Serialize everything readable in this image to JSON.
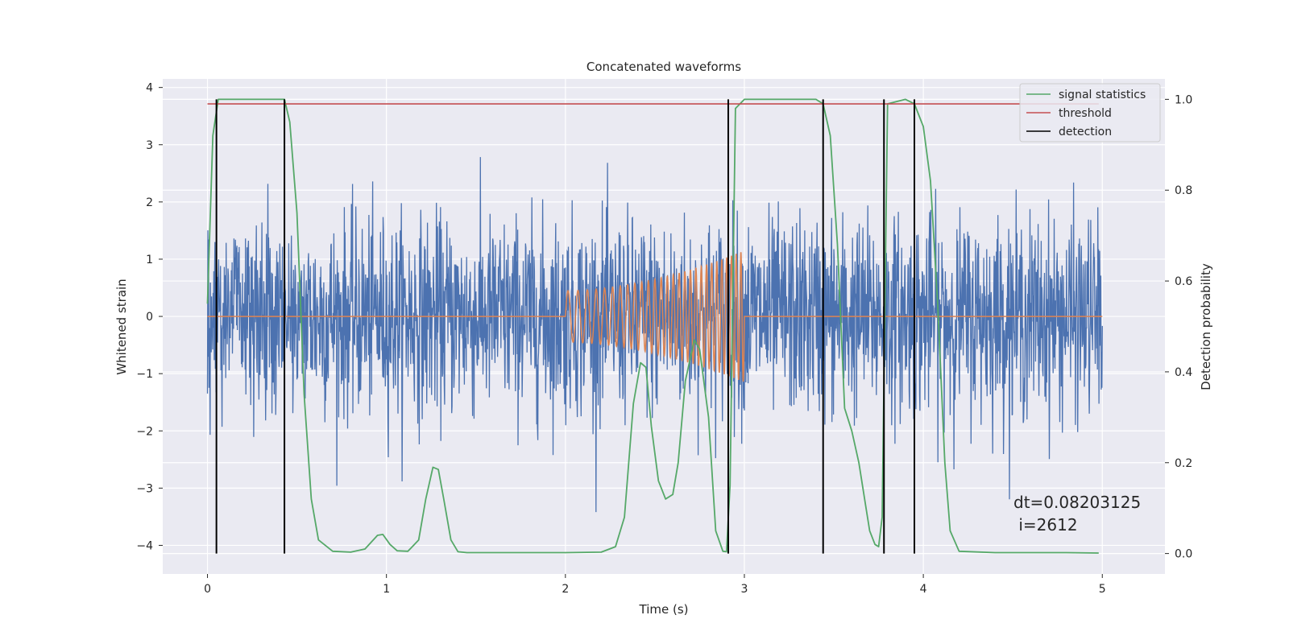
{
  "chart_data": {
    "type": "line",
    "title": "Concatenated waveforms",
    "xlabel": "Time (s)",
    "ylabel_left": "Whitened strain",
    "ylabel_right": "Detection probability",
    "xlim": [
      -0.25,
      5.35
    ],
    "ylim_left": [
      -4.5,
      4.15
    ],
    "ylim_right": [
      -0.045,
      1.045
    ],
    "x_ticks": [
      0,
      1,
      2,
      3,
      4,
      5
    ],
    "y_ticks_left": [
      -4,
      -3,
      -2,
      -1,
      0,
      1,
      2,
      3,
      4
    ],
    "y_ticks_right": [
      0.0,
      0.2,
      0.4,
      0.6,
      0.8,
      1.0
    ],
    "grid": true,
    "legend_position": "upper right",
    "background_color": "#eaeaf2",
    "series": [
      {
        "name": "signal statistics",
        "color": "#55a868",
        "x": [
          0.0,
          0.03,
          0.06,
          0.1,
          0.2,
          0.3,
          0.38,
          0.43,
          0.46,
          0.5,
          0.54,
          0.58,
          0.62,
          0.7,
          0.8,
          0.88,
          0.95,
          0.98,
          1.02,
          1.06,
          1.12,
          1.18,
          1.22,
          1.26,
          1.29,
          1.32,
          1.36,
          1.4,
          1.45,
          1.6,
          1.8,
          2.0,
          2.2,
          2.28,
          2.33,
          2.38,
          2.42,
          2.45,
          2.48,
          2.52,
          2.56,
          2.6,
          2.63,
          2.67,
          2.72,
          2.75,
          2.8,
          2.84,
          2.88,
          2.9,
          2.92,
          2.95,
          3.0,
          3.2,
          3.4,
          3.44,
          3.48,
          3.52,
          3.56,
          3.6,
          3.64,
          3.68,
          3.7,
          3.73,
          3.75,
          3.77,
          3.8,
          3.9,
          3.95,
          4.0,
          4.04,
          4.08,
          4.12,
          4.15,
          4.2,
          4.4,
          4.6,
          4.8,
          4.98
        ],
        "values": [
          0.55,
          0.92,
          1.0,
          1.0,
          1.0,
          1.0,
          1.0,
          1.0,
          0.95,
          0.75,
          0.35,
          0.12,
          0.03,
          0.005,
          0.003,
          0.01,
          0.04,
          0.042,
          0.02,
          0.006,
          0.005,
          0.03,
          0.12,
          0.19,
          0.185,
          0.12,
          0.03,
          0.004,
          0.002,
          0.002,
          0.002,
          0.002,
          0.003,
          0.015,
          0.08,
          0.33,
          0.42,
          0.41,
          0.28,
          0.16,
          0.12,
          0.13,
          0.2,
          0.38,
          0.47,
          0.45,
          0.3,
          0.05,
          0.005,
          0.004,
          0.15,
          0.98,
          1.0,
          1.0,
          1.0,
          0.99,
          0.92,
          0.68,
          0.32,
          0.27,
          0.2,
          0.1,
          0.05,
          0.02,
          0.015,
          0.08,
          0.99,
          1.0,
          0.99,
          0.94,
          0.82,
          0.55,
          0.2,
          0.05,
          0.005,
          0.002,
          0.002,
          0.002,
          0.001
        ]
      },
      {
        "name": "threshold",
        "color": "#c44e52",
        "x": [
          0.0,
          4.98
        ],
        "values": [
          0.99,
          0.99
        ]
      },
      {
        "name": "detection",
        "color": "#000000",
        "x": [
          0.05,
          0.43,
          2.91,
          3.44,
          3.78,
          3.95
        ],
        "range": [
          0.0,
          1.0
        ]
      }
    ],
    "noise_color": "#4c72b0",
    "injection_color": "#dd8452",
    "annotation": {
      "line1": "dt=0.08203125",
      "line2": " i=2612"
    }
  }
}
